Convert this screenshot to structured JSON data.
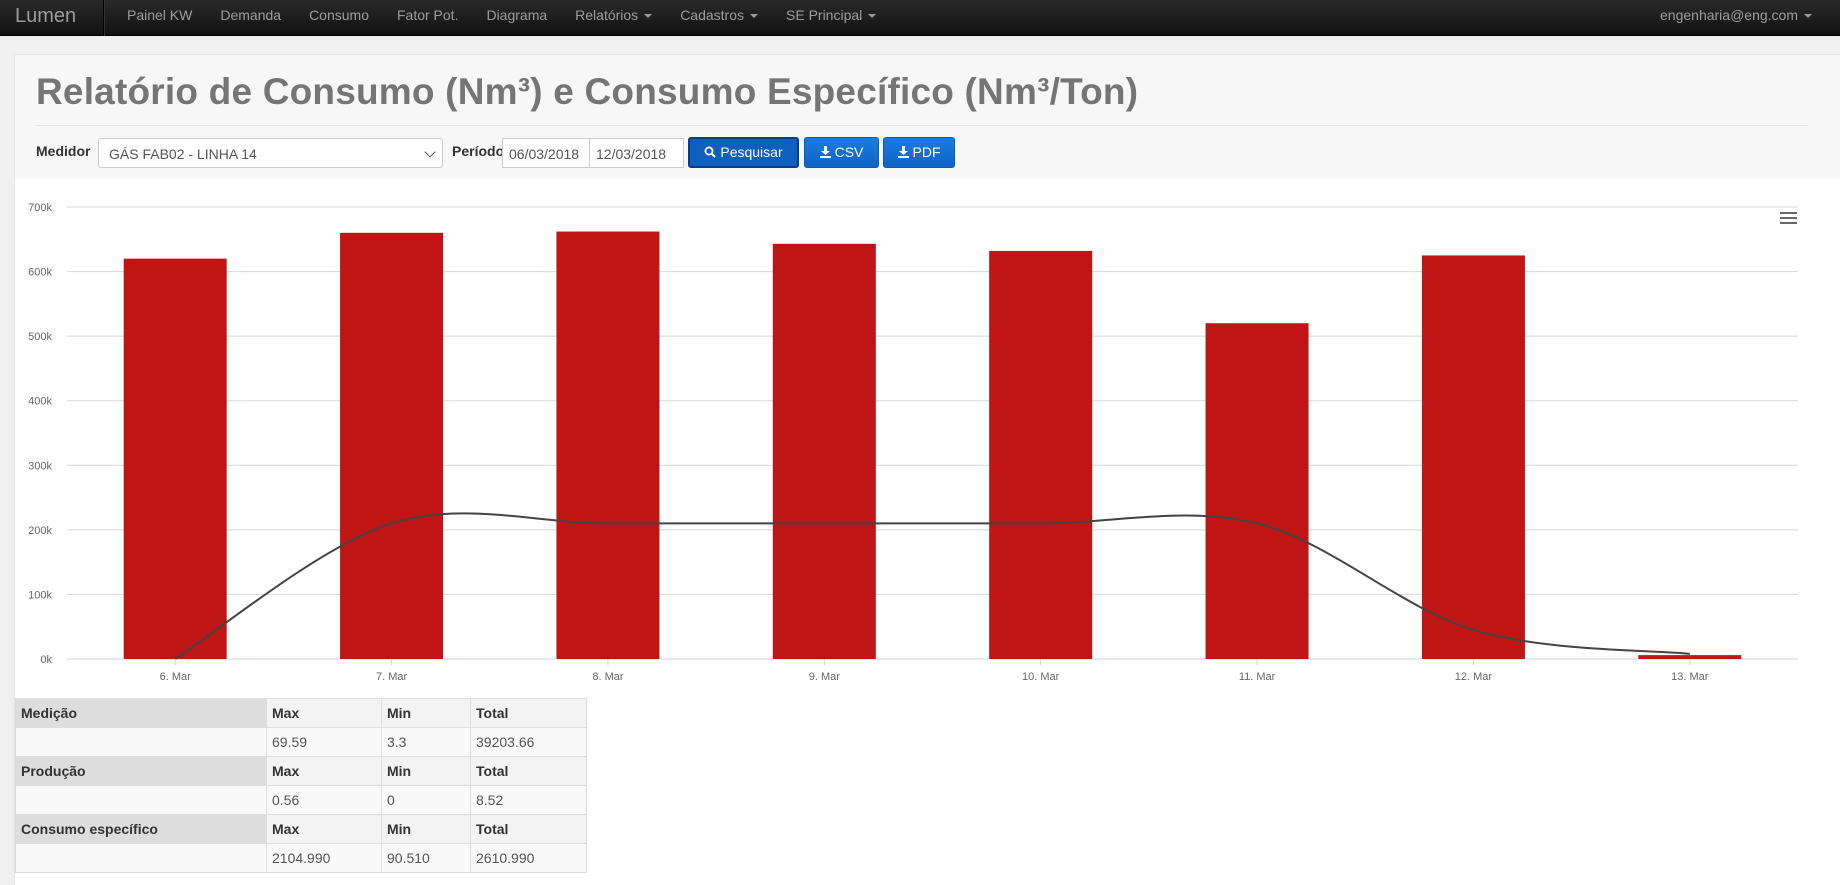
{
  "navbar": {
    "brand": "Lumen",
    "items": [
      {
        "label": "Painel KW",
        "dropdown": false
      },
      {
        "label": "Demanda",
        "dropdown": false
      },
      {
        "label": "Consumo",
        "dropdown": false
      },
      {
        "label": "Fator Pot.",
        "dropdown": false
      },
      {
        "label": "Diagrama",
        "dropdown": false
      },
      {
        "label": "Relatórios",
        "dropdown": true
      },
      {
        "label": "Cadastros",
        "dropdown": true
      },
      {
        "label": "SE Principal",
        "dropdown": true
      }
    ],
    "user": "engenharia@eng.com"
  },
  "page": {
    "title": "Relatório de Consumo (Nm³) e Consumo Específico (Nm³/Ton)"
  },
  "filters": {
    "meter_label": "Medidor",
    "meter_value": "GÁS FAB02 - LINHA 14",
    "period_label": "Período",
    "start_date": "06/03/2018",
    "end_date": "12/03/2018",
    "search_label": "Pesquisar",
    "csv_label": "CSV",
    "pdf_label": "PDF"
  },
  "chart_data": {
    "type": "bar",
    "categories": [
      "6. Mar",
      "7. Mar",
      "8. Mar",
      "9. Mar",
      "10. Mar",
      "11. Mar",
      "12. Mar",
      "13. Mar"
    ],
    "series": [
      {
        "type": "bar",
        "color": "#bf1515",
        "values": [
          620000,
          660000,
          662000,
          643000,
          632000,
          520000,
          625000,
          6000
        ]
      },
      {
        "type": "line",
        "color": "#444444",
        "values": [
          0,
          210000,
          210000,
          210000,
          210000,
          210000,
          45000,
          8000
        ]
      }
    ],
    "ylim": [
      0,
      700000
    ],
    "y_ticks": [
      "0k",
      "100k",
      "200k",
      "300k",
      "400k",
      "500k",
      "600k",
      "700k"
    ],
    "grid": true,
    "legend": "none"
  },
  "summary": [
    {
      "group": "Medição",
      "headers": [
        "Max",
        "Min",
        "Total"
      ],
      "values": [
        "69.59",
        "3.3",
        "39203.66"
      ]
    },
    {
      "group": "Produção",
      "headers": [
        "Max",
        "Min",
        "Total"
      ],
      "values": [
        "0.56",
        "0",
        "8.52"
      ]
    },
    {
      "group": "Consumo específico",
      "headers": [
        "Max",
        "Min",
        "Total"
      ],
      "values": [
        "2104.990",
        "90.510",
        "2610.990"
      ]
    }
  ],
  "colors": {
    "navbar": "#1a1a1a",
    "accent": "#0f63c6",
    "bar": "#bf1515",
    "line": "#444444"
  }
}
